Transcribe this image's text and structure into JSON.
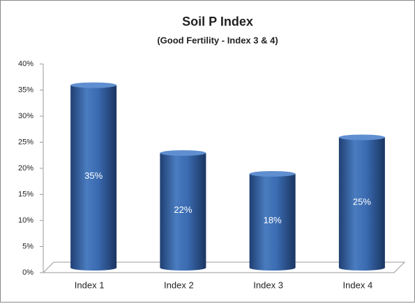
{
  "chart_data": {
    "type": "bar",
    "title": "Soil P Index",
    "subtitle": "(Good Fertility - Index 3 & 4)",
    "categories": [
      "Index 1",
      "Index 2",
      "Index 3",
      "Index 4"
    ],
    "values": [
      35,
      22,
      18,
      25
    ],
    "value_labels": [
      "35%",
      "22%",
      "18%",
      "25%"
    ],
    "color": "#2f5fa0",
    "ylim": [
      0,
      40
    ],
    "yticks": [
      {
        "value": 0,
        "label": "0%"
      },
      {
        "value": 5,
        "label": "5%"
      },
      {
        "value": 10,
        "label": "10%"
      },
      {
        "value": 15,
        "label": "15%"
      },
      {
        "value": 20,
        "label": "20%"
      },
      {
        "value": 25,
        "label": "25%"
      },
      {
        "value": 30,
        "label": "30%"
      },
      {
        "value": 35,
        "label": "35%"
      },
      {
        "value": 40,
        "label": "40%"
      }
    ],
    "grid": false
  }
}
